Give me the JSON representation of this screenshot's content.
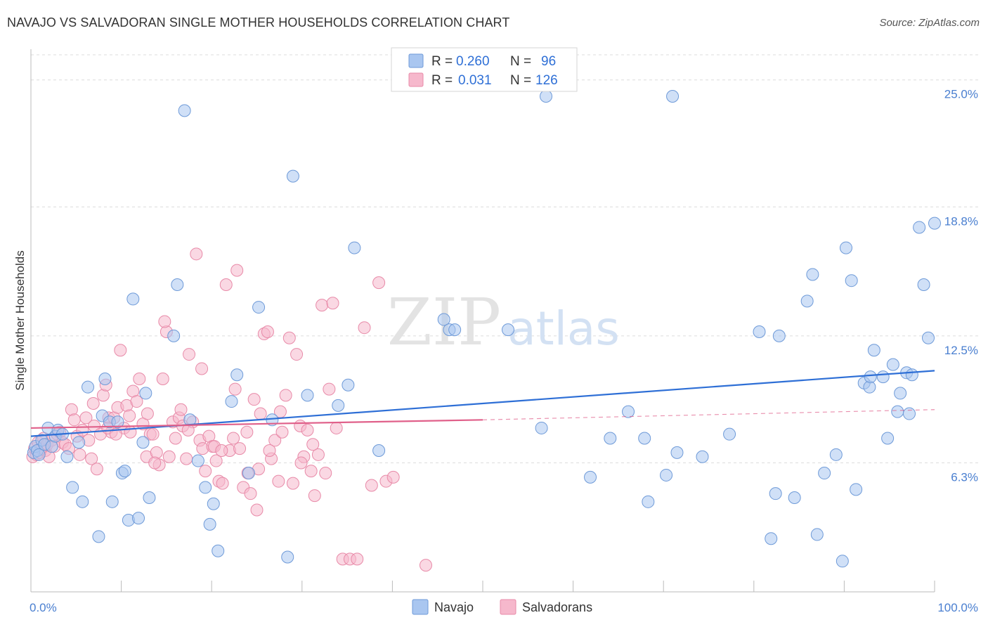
{
  "header": {
    "title": "NAVAJO VS SALVADORAN SINGLE MOTHER HOUSEHOLDS CORRELATION CHART",
    "source": "Source: ZipAtlas.com"
  },
  "watermark": {
    "zip": "ZIP",
    "atlas": "atlas"
  },
  "colors": {
    "navajo_fill": "#a9c6f0",
    "navajo_stroke": "#6e9ad8",
    "navajo_line": "#2e6fd6",
    "salvadoran_fill": "#f6b8cc",
    "salvadoran_stroke": "#e88aa8",
    "salvadoran_line": "#e0608a"
  },
  "chart_data": {
    "type": "scatter",
    "title": "NAVAJO VS SALVADORAN SINGLE MOTHER HOUSEHOLDS CORRELATION CHART",
    "xlabel": "",
    "ylabel": "Single Mother Households",
    "xlim": [
      0,
      100
    ],
    "ylim": [
      0,
      26.5
    ],
    "x_tick_labels": [
      {
        "value": 0,
        "label": "0.0%"
      },
      {
        "value": 100,
        "label": "100.0%"
      }
    ],
    "y_tick_labels": [
      {
        "value": 6.3,
        "label": "6.3%"
      },
      {
        "value": 12.5,
        "label": "12.5%"
      },
      {
        "value": 18.8,
        "label": "18.8%"
      },
      {
        "value": 25.0,
        "label": "25.0%"
      }
    ],
    "x_minor_ticks": [
      0,
      10,
      20,
      30,
      40,
      50,
      60,
      70,
      80,
      90,
      100
    ],
    "grid": true,
    "legend": {
      "placement": "top-center",
      "rows": [
        {
          "r_label": "R =",
          "r_value": "0.260",
          "n_label": "N =",
          "n_value": "96"
        },
        {
          "r_label": "R =",
          "r_value": "0.031",
          "n_label": "N =",
          "n_value": "126"
        }
      ]
    },
    "series": [
      {
        "name": "Navajo",
        "trend": {
          "x": [
            0,
            100
          ],
          "y": [
            7.6,
            10.8
          ]
        },
        "points": [
          [
            0.3,
            6.8
          ],
          [
            0.5,
            7.1
          ],
          [
            0.7,
            6.9
          ],
          [
            0.9,
            6.7
          ],
          [
            1.2,
            7.4
          ],
          [
            1.5,
            7.2
          ],
          [
            1.9,
            8.0
          ],
          [
            2.3,
            7.1
          ],
          [
            2.7,
            7.6
          ],
          [
            3.0,
            7.9
          ],
          [
            3.5,
            7.7
          ],
          [
            4.0,
            6.6
          ],
          [
            4.6,
            5.1
          ],
          [
            5.3,
            7.3
          ],
          [
            5.7,
            4.4
          ],
          [
            6.3,
            10.0
          ],
          [
            7.5,
            2.7
          ],
          [
            7.9,
            8.6
          ],
          [
            8.2,
            10.4
          ],
          [
            8.7,
            8.3
          ],
          [
            9.0,
            4.4
          ],
          [
            9.6,
            8.3
          ],
          [
            10.1,
            5.8
          ],
          [
            10.4,
            5.9
          ],
          [
            10.8,
            3.5
          ],
          [
            11.3,
            14.3
          ],
          [
            11.9,
            3.6
          ],
          [
            12.4,
            7.3
          ],
          [
            12.7,
            9.7
          ],
          [
            13.1,
            4.6
          ],
          [
            15.8,
            12.5
          ],
          [
            16.2,
            15.0
          ],
          [
            17.0,
            23.5
          ],
          [
            17.6,
            8.4
          ],
          [
            18.5,
            6.4
          ],
          [
            19.3,
            5.1
          ],
          [
            19.8,
            3.3
          ],
          [
            20.2,
            4.3
          ],
          [
            20.7,
            2.0
          ],
          [
            22.2,
            9.3
          ],
          [
            22.8,
            10.6
          ],
          [
            24.1,
            5.8
          ],
          [
            25.2,
            13.9
          ],
          [
            26.7,
            8.4
          ],
          [
            28.4,
            1.7
          ],
          [
            29.0,
            20.3
          ],
          [
            30.6,
            9.6
          ],
          [
            34.0,
            9.1
          ],
          [
            35.1,
            10.1
          ],
          [
            35.8,
            16.8
          ],
          [
            38.5,
            6.9
          ],
          [
            45.7,
            13.3
          ],
          [
            46.3,
            12.8
          ],
          [
            46.9,
            12.8
          ],
          [
            52.8,
            12.8
          ],
          [
            56.5,
            8.0
          ],
          [
            57.0,
            24.2
          ],
          [
            61.9,
            5.6
          ],
          [
            64.1,
            7.5
          ],
          [
            66.1,
            8.8
          ],
          [
            67.9,
            7.5
          ],
          [
            68.3,
            4.4
          ],
          [
            70.3,
            5.7
          ],
          [
            71.0,
            24.2
          ],
          [
            71.5,
            6.8
          ],
          [
            74.3,
            6.6
          ],
          [
            77.3,
            7.7
          ],
          [
            80.6,
            12.7
          ],
          [
            81.9,
            2.6
          ],
          [
            82.4,
            4.8
          ],
          [
            82.8,
            12.5
          ],
          [
            84.5,
            4.6
          ],
          [
            85.9,
            14.2
          ],
          [
            86.5,
            15.5
          ],
          [
            87.0,
            2.8
          ],
          [
            87.8,
            5.8
          ],
          [
            89.1,
            6.7
          ],
          [
            89.8,
            1.5
          ],
          [
            90.2,
            16.8
          ],
          [
            90.8,
            15.2
          ],
          [
            91.3,
            5.0
          ],
          [
            92.2,
            10.2
          ],
          [
            92.8,
            10.0
          ],
          [
            92.9,
            10.5
          ],
          [
            93.3,
            11.8
          ],
          [
            94.3,
            10.5
          ],
          [
            94.8,
            7.5
          ],
          [
            95.4,
            11.1
          ],
          [
            95.9,
            8.8
          ],
          [
            96.2,
            9.7
          ],
          [
            96.9,
            10.7
          ],
          [
            97.2,
            8.7
          ],
          [
            97.5,
            10.6
          ],
          [
            98.3,
            17.8
          ],
          [
            98.8,
            15.0
          ],
          [
            99.3,
            12.4
          ],
          [
            100.0,
            18.0
          ]
        ]
      },
      {
        "name": "Salvadorans",
        "trend": {
          "x": [
            0,
            50
          ],
          "y": [
            8.0,
            8.4
          ]
        },
        "trend_extension": {
          "x": [
            50,
            100
          ],
          "y": [
            8.4,
            8.9
          ]
        },
        "points": [
          [
            0.2,
            6.6
          ],
          [
            0.4,
            7.0
          ],
          [
            0.6,
            6.7
          ],
          [
            0.8,
            7.3
          ],
          [
            1.0,
            6.8
          ],
          [
            1.2,
            7.0
          ],
          [
            1.4,
            7.5
          ],
          [
            1.6,
            6.9
          ],
          [
            1.8,
            7.2
          ],
          [
            2.0,
            6.6
          ],
          [
            2.3,
            7.4
          ],
          [
            2.6,
            7.1
          ],
          [
            2.9,
            7.7
          ],
          [
            3.2,
            7.8
          ],
          [
            3.5,
            7.3
          ],
          [
            3.8,
            7.2
          ],
          [
            4.2,
            7.0
          ],
          [
            4.5,
            8.9
          ],
          [
            4.8,
            8.4
          ],
          [
            5.1,
            7.6
          ],
          [
            5.4,
            6.7
          ],
          [
            5.7,
            7.9
          ],
          [
            6.1,
            8.5
          ],
          [
            6.4,
            7.4
          ],
          [
            6.7,
            6.5
          ],
          [
            7.0,
            8.1
          ],
          [
            7.3,
            6.0
          ],
          [
            7.7,
            7.7
          ],
          [
            8.0,
            9.6
          ],
          [
            8.3,
            10.1
          ],
          [
            8.6,
            8.5
          ],
          [
            8.9,
            7.8
          ],
          [
            9.2,
            8.5
          ],
          [
            9.6,
            9.0
          ],
          [
            9.9,
            11.8
          ],
          [
            10.3,
            8.0
          ],
          [
            10.6,
            9.1
          ],
          [
            11.0,
            7.8
          ],
          [
            11.3,
            9.8
          ],
          [
            11.7,
            9.3
          ],
          [
            12.0,
            10.4
          ],
          [
            12.4,
            8.2
          ],
          [
            12.8,
            6.6
          ],
          [
            13.2,
            7.7
          ],
          [
            13.5,
            7.7
          ],
          [
            13.9,
            6.8
          ],
          [
            14.2,
            6.2
          ],
          [
            14.6,
            10.4
          ],
          [
            15.0,
            12.7
          ],
          [
            15.3,
            6.6
          ],
          [
            15.7,
            8.3
          ],
          [
            16.0,
            7.5
          ],
          [
            16.4,
            8.5
          ],
          [
            16.8,
            8.1
          ],
          [
            17.2,
            6.5
          ],
          [
            17.5,
            11.6
          ],
          [
            17.9,
            8.3
          ],
          [
            18.3,
            16.5
          ],
          [
            18.7,
            7.4
          ],
          [
            19.0,
            7.0
          ],
          [
            19.3,
            5.9
          ],
          [
            19.7,
            7.6
          ],
          [
            20.1,
            7.1
          ],
          [
            20.5,
            6.4
          ],
          [
            20.8,
            5.4
          ],
          [
            21.2,
            5.3
          ],
          [
            21.6,
            15.0
          ],
          [
            22.0,
            6.9
          ],
          [
            22.4,
            7.5
          ],
          [
            22.8,
            15.7
          ],
          [
            23.1,
            7.0
          ],
          [
            23.5,
            5.1
          ],
          [
            23.9,
            7.8
          ],
          [
            24.3,
            4.8
          ],
          [
            24.7,
            9.4
          ],
          [
            25.0,
            4.0
          ],
          [
            25.4,
            8.7
          ],
          [
            25.8,
            12.6
          ],
          [
            26.2,
            12.7
          ],
          [
            26.6,
            6.5
          ],
          [
            27.0,
            7.4
          ],
          [
            27.4,
            5.4
          ],
          [
            27.8,
            7.8
          ],
          [
            28.2,
            9.6
          ],
          [
            28.6,
            12.4
          ],
          [
            29.0,
            5.3
          ],
          [
            29.4,
            11.6
          ],
          [
            29.8,
            8.1
          ],
          [
            30.2,
            6.6
          ],
          [
            30.6,
            7.9
          ],
          [
            31.0,
            5.9
          ],
          [
            31.4,
            4.7
          ],
          [
            31.8,
            6.7
          ],
          [
            32.2,
            14.0
          ],
          [
            32.6,
            5.8
          ],
          [
            33.0,
            9.9
          ],
          [
            33.4,
            14.1
          ],
          [
            33.8,
            8.0
          ],
          [
            34.5,
            1.6
          ],
          [
            35.3,
            1.6
          ],
          [
            36.1,
            1.6
          ],
          [
            36.9,
            12.9
          ],
          [
            37.7,
            5.2
          ],
          [
            38.5,
            15.1
          ],
          [
            39.3,
            5.4
          ],
          [
            40.1,
            5.6
          ],
          [
            43.7,
            1.3
          ],
          [
            8.5,
            8.0
          ],
          [
            12.9,
            8.7
          ],
          [
            16.6,
            8.9
          ],
          [
            20.3,
            7.1
          ],
          [
            24.0,
            5.8
          ],
          [
            27.6,
            8.8
          ],
          [
            31.2,
            7.2
          ],
          [
            9.4,
            7.7
          ],
          [
            13.7,
            6.3
          ],
          [
            17.4,
            7.9
          ],
          [
            21.1,
            6.9
          ],
          [
            25.2,
            6.0
          ],
          [
            29.9,
            6.3
          ],
          [
            6.9,
            9.2
          ],
          [
            10.9,
            8.6
          ],
          [
            14.8,
            13.2
          ],
          [
            18.9,
            10.9
          ],
          [
            22.6,
            9.9
          ],
          [
            26.4,
            6.9
          ]
        ]
      }
    ]
  },
  "bottom_legend": [
    "Navajo",
    "Salvadorans"
  ]
}
